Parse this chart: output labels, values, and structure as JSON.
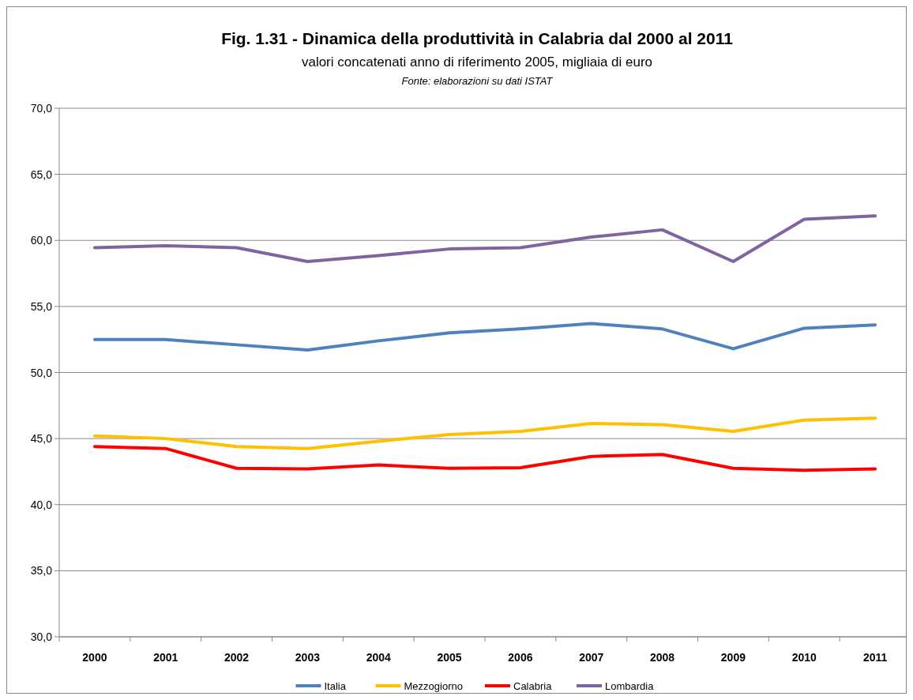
{
  "chart_data": {
    "type": "line",
    "title": "Fig. 1.31 - Dinamica della produttività in Calabria dal 2000 al 2011",
    "subtitle": "valori concatenati anno di riferimento 2005, migliaia di euro",
    "annotations": [
      "Fonte: elaborazioni su dati ISTAT"
    ],
    "categories": [
      "2000",
      "2001",
      "2002",
      "2003",
      "2004",
      "2005",
      "2006",
      "2007",
      "2008",
      "2009",
      "2010",
      "2011"
    ],
    "series": [
      {
        "name": "Italia",
        "color": "#4f81bd",
        "values": [
          52.5,
          52.5,
          52.1,
          51.7,
          52.4,
          53.0,
          53.3,
          53.7,
          53.3,
          51.8,
          53.35,
          53.6
        ]
      },
      {
        "name": "Mezzogiorno",
        "color": "#ffc000",
        "values": [
          45.2,
          45.0,
          44.4,
          44.25,
          44.8,
          45.3,
          45.55,
          46.15,
          46.05,
          45.55,
          46.4,
          46.55
        ]
      },
      {
        "name": "Calabria",
        "color": "#ff0000",
        "values": [
          44.4,
          44.25,
          42.75,
          42.7,
          43.0,
          42.75,
          42.8,
          43.65,
          43.8,
          42.75,
          42.6,
          42.7
        ]
      },
      {
        "name": "Lombardia",
        "color": "#8064a2",
        "values": [
          59.45,
          59.6,
          59.45,
          58.4,
          58.85,
          59.35,
          59.45,
          60.25,
          60.8,
          58.4,
          61.6,
          61.85
        ]
      }
    ],
    "ylim": [
      30,
      70
    ],
    "yticks": [
      {
        "value": 30,
        "label": "30,0"
      },
      {
        "value": 35,
        "label": "35,0"
      },
      {
        "value": 40,
        "label": "40,0"
      },
      {
        "value": 45,
        "label": "45,0"
      },
      {
        "value": 50,
        "label": "50,0"
      },
      {
        "value": 55,
        "label": "55,0"
      },
      {
        "value": 60,
        "label": "60,0"
      },
      {
        "value": 65,
        "label": "65,0"
      },
      {
        "value": 70,
        "label": "70,0"
      }
    ],
    "grid": "y",
    "legend": "bottom",
    "marker": "none",
    "line_style": "solid"
  }
}
